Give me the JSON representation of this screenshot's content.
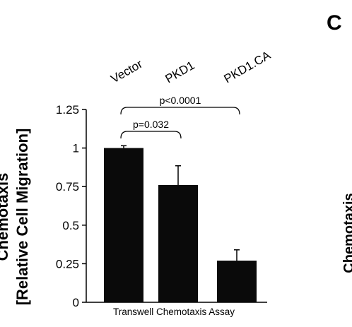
{
  "chart_data": {
    "type": "bar",
    "categories": [
      "Vector",
      "PKD1",
      "PKD1.CA"
    ],
    "values": [
      1.0,
      0.76,
      0.27
    ],
    "errors": [
      0.015,
      0.125,
      0.07
    ],
    "ylabel_line1": "Chemotaxis",
    "ylabel_line2": "[Relative Cell Migration]",
    "xlabel": "Transwell Chemotaxis Assay",
    "ylim": [
      0,
      1.25
    ],
    "yticks": [
      0,
      0.25,
      0.5,
      0.75,
      1,
      1.25
    ],
    "ytick_labels": [
      "0",
      "0.25",
      "0.5",
      "0.75",
      "1",
      "1.25"
    ],
    "bar_color": "#0a0a0a",
    "significance": [
      {
        "from": 0,
        "to": 1,
        "label": "p=0.032",
        "level": 0
      },
      {
        "from": 0,
        "to": 2,
        "label": "p<0.0001",
        "level": 1
      }
    ]
  },
  "panel_label": "C",
  "partial_axis_label": "Chemotaxis"
}
